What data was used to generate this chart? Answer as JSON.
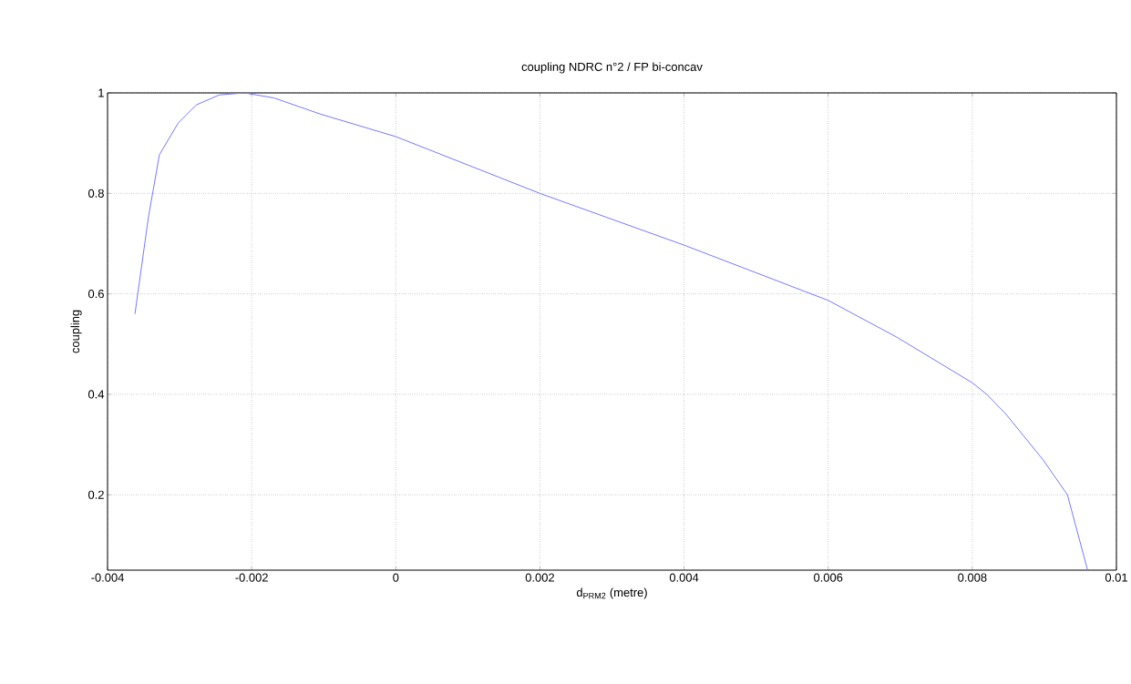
{
  "chart_data": {
    "type": "line",
    "title": "coupling NDRC n°2 / FP bi-concav",
    "xlabel": "d$_{PRM2}$ (metre)",
    "ylabel": "coupling",
    "x": [
      -0.00362,
      -0.00343,
      -0.00328,
      -0.00302,
      -0.00277,
      -0.00245,
      -0.0021,
      -0.00169,
      -0.00105,
      0,
      0.002,
      0.004,
      0.006,
      0.00695,
      0.008,
      0.0082,
      0.00847,
      0.00898,
      0.00932,
      0.0096
    ],
    "series": [
      {
        "color": "#7777ff",
        "values": [
          0.56,
          0.755,
          0.877,
          0.94,
          0.976,
          0.996,
          1.0,
          0.99,
          0.958,
          0.913,
          0.8,
          0.697,
          0.587,
          0.514,
          0.423,
          0.4,
          0.36,
          0.27,
          0.2,
          0.05
        ]
      }
    ],
    "xlim": [
      -0.004,
      0.01
    ],
    "ylim": [
      0.05,
      1
    ],
    "xticks": [
      -0.004,
      -0.002,
      0,
      0.002,
      0.004,
      0.006,
      0.008,
      0.01
    ],
    "yticks": [
      0.2,
      0.4,
      0.6,
      0.8,
      1
    ],
    "grid": true,
    "line_style": "solid",
    "marker": "none"
  }
}
